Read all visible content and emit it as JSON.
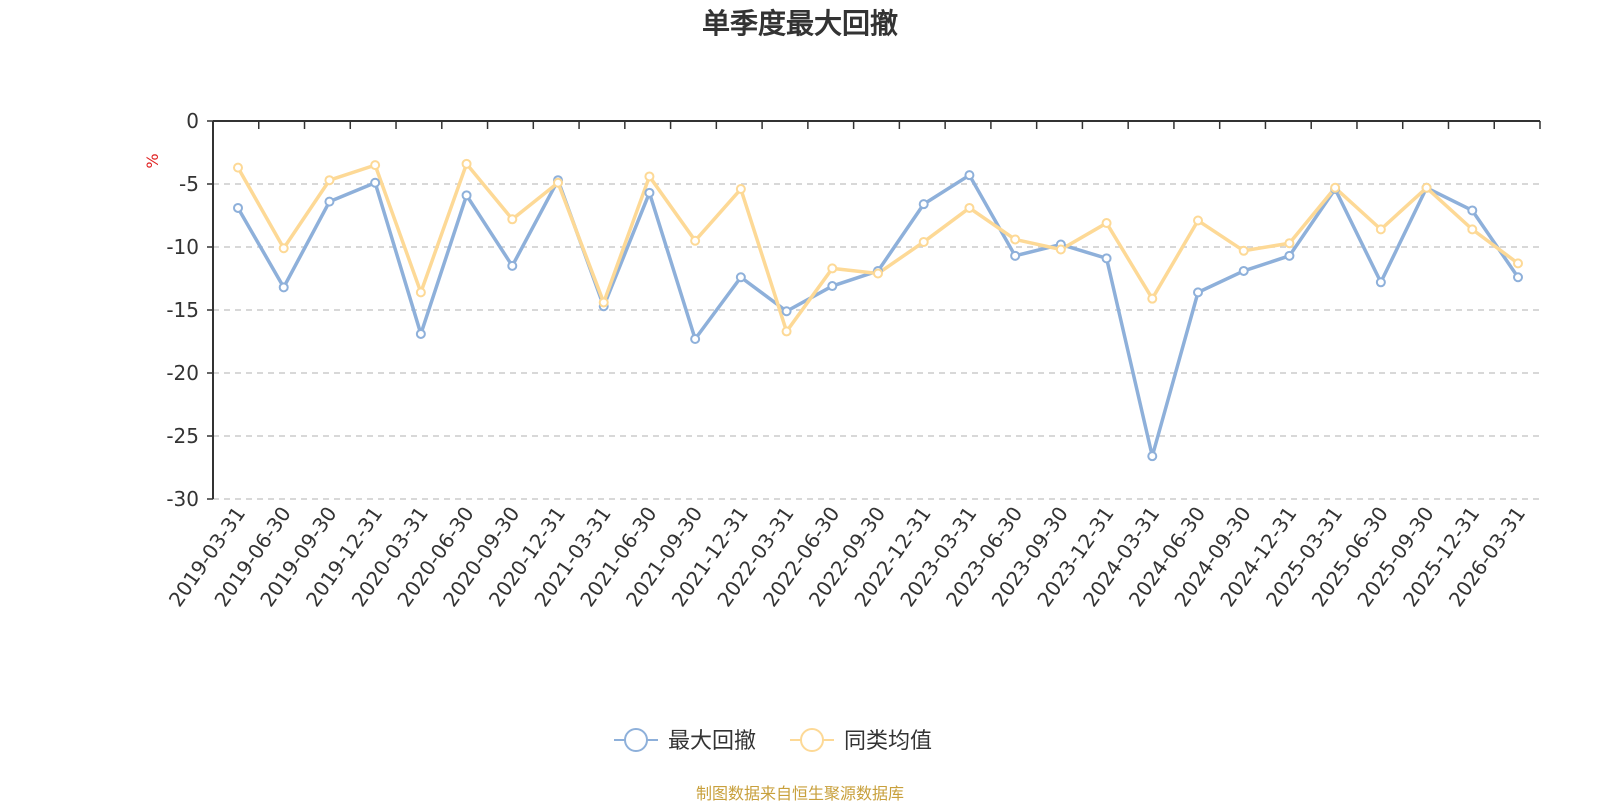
{
  "chart_data": {
    "type": "line",
    "title": "单季度最大回撤",
    "ylabel": "%",
    "ylim": [
      -30,
      0
    ],
    "yticks": [
      0,
      -5,
      -10,
      -15,
      -20,
      -25,
      -30
    ],
    "grid": true,
    "legend_position": "bottom-center",
    "categories": [
      "2019-03-31",
      "2019-06-30",
      "2019-09-30",
      "2019-12-31",
      "2020-03-31",
      "2020-06-30",
      "2020-09-30",
      "2020-12-31",
      "2021-03-31",
      "2021-06-30",
      "2021-09-30",
      "2021-12-31",
      "2022-03-31",
      "2022-06-30",
      "2022-09-30",
      "2022-12-31",
      "2023-03-31",
      "2023-06-30",
      "2023-09-30",
      "2023-12-31",
      "2024-03-31",
      "2024-06-30",
      "2024-09-30",
      "2024-12-31",
      "2025-03-31",
      "2025-06-30",
      "2025-09-30",
      "2025-12-31",
      "2026-03-31"
    ],
    "series": [
      {
        "name": "最大回撤",
        "color": "#8eb0da",
        "values": [
          -6.9,
          -13.2,
          -6.4,
          -4.9,
          -16.9,
          -5.9,
          -11.5,
          -4.7,
          -14.7,
          -5.7,
          -17.3,
          -12.4,
          -15.1,
          -13.1,
          -11.9,
          -6.6,
          -4.3,
          -10.7,
          -9.8,
          -10.9,
          -26.6,
          -13.6,
          -11.9,
          -10.7,
          -5.4,
          -12.8,
          -5.3,
          -7.1,
          -12.4
        ]
      },
      {
        "name": "同类均值",
        "color": "#fdd996",
        "values": [
          -3.7,
          -10.1,
          -4.7,
          -3.5,
          -13.6,
          -3.4,
          -7.8,
          -4.9,
          -14.4,
          -4.4,
          -9.5,
          -5.4,
          -16.7,
          -11.7,
          -12.1,
          -9.6,
          -6.9,
          -9.4,
          -10.2,
          -8.1,
          -14.1,
          -7.9,
          -10.3,
          -9.7,
          -5.3,
          -8.6,
          -5.3,
          -8.6,
          -11.3
        ]
      }
    ]
  },
  "source_note": "制图数据来自恒生聚源数据库"
}
